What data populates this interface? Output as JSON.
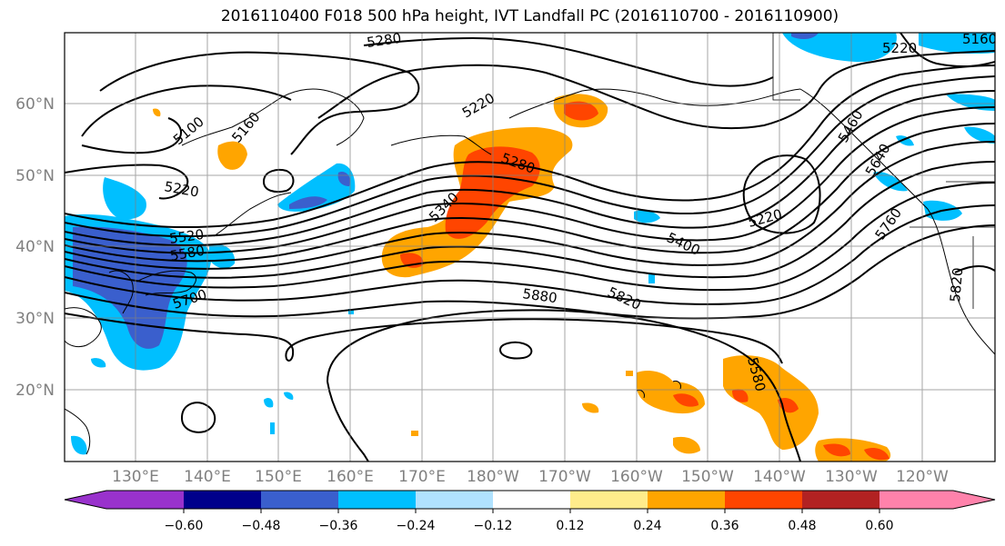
{
  "title": "2016110400 F018 500 hPa height, IVT Landfall PC (2016110700 - 2016110900)",
  "lat_labels": [
    "60°N",
    "50°N",
    "40°N",
    "30°N",
    "20°N"
  ],
  "lon_labels": [
    "130°E",
    "140°E",
    "150°E",
    "160°E",
    "170°E",
    "180°W",
    "170°W",
    "160°W",
    "150°W",
    "140°W",
    "130°W",
    "120°W"
  ],
  "contour_labels": [
    "5280",
    "5220",
    "5160",
    "5100",
    "5220",
    "5520",
    "5580",
    "5700",
    "5280",
    "5340",
    "5220",
    "5400",
    "5880",
    "5820",
    "5580",
    "5460",
    "5640",
    "5760",
    "5820",
    "5160",
    "5220"
  ],
  "colorbar": {
    "ticks": [
      "−0.60",
      "−0.48",
      "−0.36",
      "−0.24",
      "−0.12",
      "0.12",
      "0.24",
      "0.36",
      "0.48",
      "0.60"
    ],
    "colors": [
      "#9932CC",
      "#00008B",
      "#3A5FCD",
      "#00BFFF",
      "#B0E2FF",
      "#FFFFFF",
      "#FFEC8B",
      "#FFA500",
      "#FF4500",
      "#B22222",
      "#FF82AB"
    ]
  }
}
